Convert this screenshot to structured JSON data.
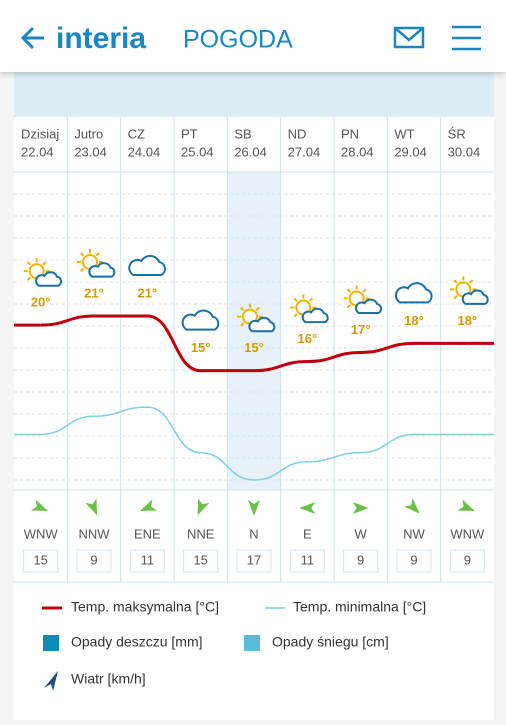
{
  "header": {
    "logo": "interia",
    "section": "POGODA"
  },
  "days": [
    {
      "name": "Dzisiaj",
      "date": "22.04",
      "max": 20,
      "max_label": "20°",
      "min": 8,
      "wind_dir": "WNW",
      "wind_speed": 15
    },
    {
      "name": "Jutro",
      "date": "23.04",
      "max": 21,
      "max_label": "21°",
      "min": 10,
      "wind_dir": "NNW",
      "wind_speed": 9
    },
    {
      "name": "CZ",
      "date": "24.04",
      "max": 21,
      "max_label": "21°",
      "min": 11,
      "wind_dir": "ENE",
      "wind_speed": 11
    },
    {
      "name": "PT",
      "date": "25.04",
      "max": 15,
      "max_label": "15°",
      "min": 6,
      "wind_dir": "NNE",
      "wind_speed": 15
    },
    {
      "name": "SB",
      "date": "26.04",
      "max": 15,
      "max_label": "15°",
      "min": 3,
      "wind_dir": "N",
      "wind_speed": 17
    },
    {
      "name": "ND",
      "date": "27.04",
      "max": 16,
      "max_label": "16°",
      "min": 5,
      "wind_dir": "E",
      "wind_speed": 11
    },
    {
      "name": "PN",
      "date": "28.04",
      "max": 17,
      "max_label": "17°",
      "min": 6,
      "wind_dir": "W",
      "wind_speed": 9
    },
    {
      "name": "WT",
      "date": "29.04",
      "max": 18,
      "max_label": "18°",
      "min": 8,
      "wind_dir": "NW",
      "wind_speed": 9
    },
    {
      "name": "ŚR",
      "date": "30.04",
      "max": 18,
      "max_label": "18°",
      "min": 8,
      "wind_dir": "WNW",
      "wind_speed": 9
    }
  ],
  "colors": {
    "max": "#c0000c",
    "min": "#7fcfe0"
  },
  "legend": [
    "Temp. maksymalna [°C]",
    "Temp. minimalna [°C]",
    "Opady deszczu [mm]",
    "Opady śniegu [cm]",
    "Wiatr [km/h]"
  ]
}
